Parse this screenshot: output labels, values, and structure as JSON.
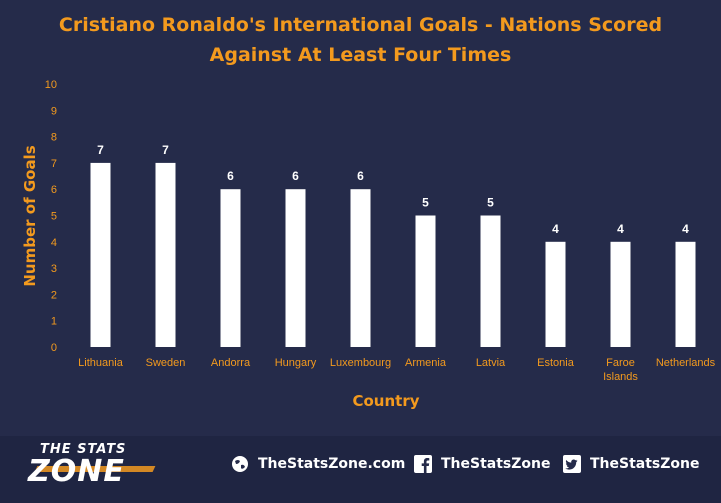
{
  "chart_data": {
    "type": "bar",
    "title_lines": [
      "Cristiano Ronaldo's International Goals - Nations Scored",
      "Against At Least Four Times"
    ],
    "xlabel": "Country",
    "ylabel": "Number of Goals",
    "ylim": [
      0,
      10
    ],
    "yticks": [
      "0",
      "1",
      "2",
      "3",
      "4",
      "5",
      "6",
      "7",
      "8",
      "9",
      "10"
    ],
    "categories": [
      [
        "Lithuania"
      ],
      [
        "Sweden"
      ],
      [
        "Andorra"
      ],
      [
        "Hungary"
      ],
      [
        "Luxembourg"
      ],
      [
        "Armenia"
      ],
      [
        "Latvia"
      ],
      [
        "Estonia"
      ],
      [
        "Faroe",
        "Islands"
      ],
      [
        "Netherlands"
      ]
    ],
    "values": [
      7,
      7,
      6,
      6,
      6,
      5,
      5,
      4,
      4,
      4
    ],
    "data_labels": true,
    "grid": false,
    "colors": {
      "bar": "#ffffff",
      "axis_text": "#f39a1e",
      "label": "#ffffff",
      "background": "#252b4a"
    }
  },
  "footer": {
    "logo_small": "THE STATS",
    "logo_big": "ZONE",
    "links": [
      {
        "icon": "globe-icon",
        "text": "TheStatsZone.com"
      },
      {
        "icon": "facebook-icon",
        "text": "TheStatsZone"
      },
      {
        "icon": "twitter-icon",
        "text": "TheStatsZone"
      }
    ]
  }
}
